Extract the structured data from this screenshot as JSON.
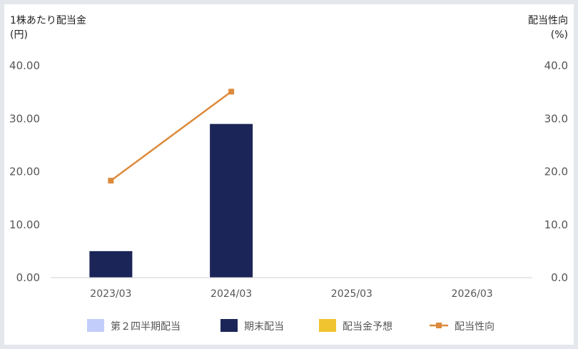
{
  "chart_data": {
    "type": "bar",
    "left_axis_title_line1": "1株あたり配当金",
    "left_axis_title_line2": "(円)",
    "right_axis_title_line1": "配当性向",
    "right_axis_title_line2": "(%)",
    "categories": [
      "2023/03",
      "2024/03",
      "2025/03",
      "2026/03"
    ],
    "y_left": {
      "min": 0,
      "max": 40,
      "ticks": [
        "0.00",
        "10.00",
        "20.00",
        "30.00",
        "40.00"
      ]
    },
    "y_right": {
      "min": 0,
      "max": 40,
      "ticks": [
        "0.0",
        "10.0",
        "20.0",
        "30.0",
        "40.0"
      ]
    },
    "series": [
      {
        "name": "第２四半期配当",
        "kind": "bar",
        "color": "#c3cdfb",
        "values": [
          null,
          null,
          null,
          null
        ]
      },
      {
        "name": "期末配当",
        "kind": "bar",
        "color": "#1b2557",
        "values": [
          5.0,
          29.0,
          null,
          null
        ]
      },
      {
        "name": "配当金予想",
        "kind": "bar",
        "color": "#f0c330",
        "values": [
          null,
          null,
          null,
          null
        ]
      },
      {
        "name": "配当性向",
        "kind": "line",
        "axis": "right",
        "color": "#dd8a3c",
        "values": [
          18.3,
          35.1,
          null,
          null
        ]
      }
    ],
    "legend_position": "bottom"
  }
}
